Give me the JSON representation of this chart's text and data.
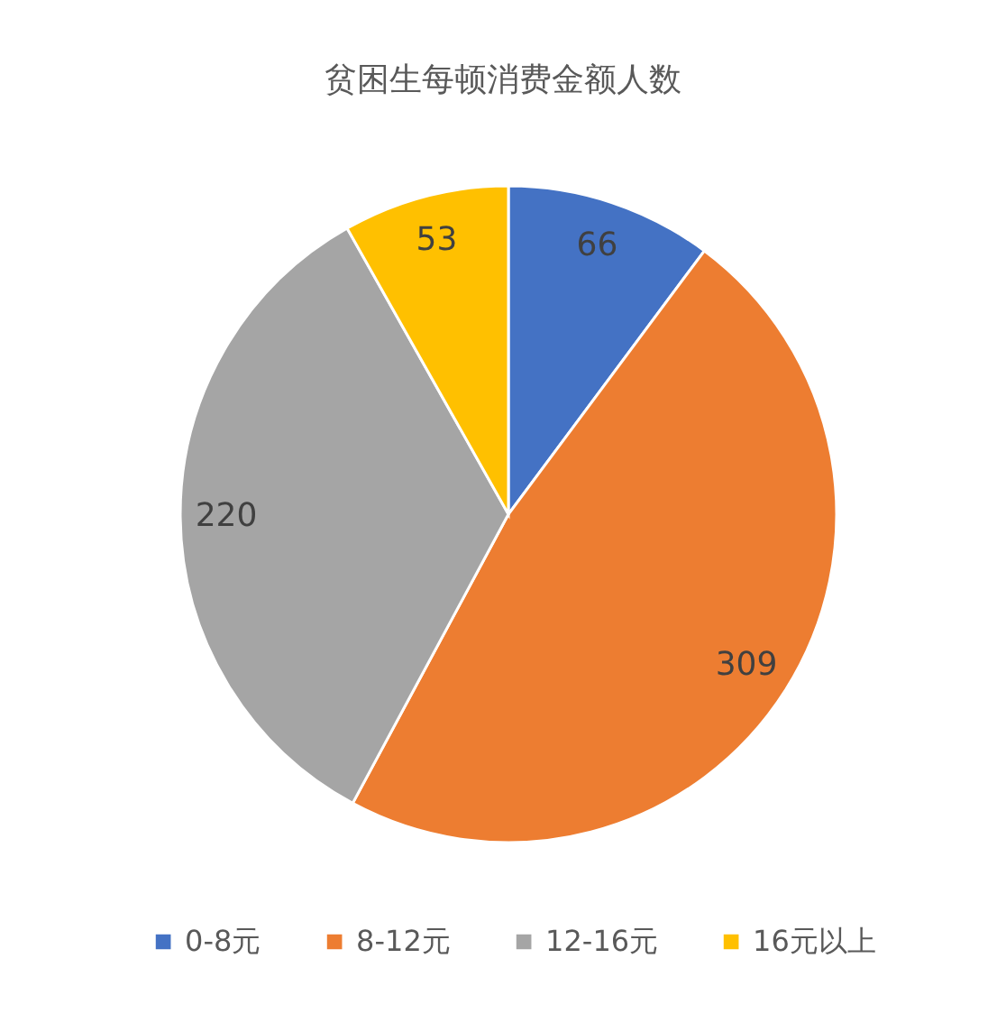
{
  "chart_data": {
    "type": "pie",
    "title": "贫困生每顿消费金额人数",
    "categories": [
      "0-8元",
      "8-12元",
      "12-16元",
      "16元以上"
    ],
    "values": [
      66,
      309,
      220,
      53
    ],
    "colors": [
      "#4472c4",
      "#ed7d31",
      "#a5a5a5",
      "#ffc000"
    ],
    "data_labels": true,
    "legend": "bottom"
  }
}
